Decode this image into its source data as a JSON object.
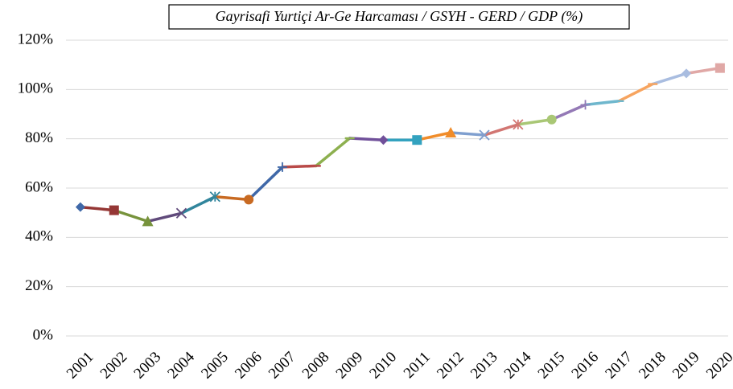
{
  "chart_data": {
    "type": "line",
    "title": "Gayrisafi Yurtiçi Ar-Ge Harcaması / GSYH - GERD / GDP (%)",
    "categories": [
      "2001",
      "2002",
      "2003",
      "2004",
      "2005",
      "2006",
      "2007",
      "2008",
      "2009",
      "2010",
      "2011",
      "2012",
      "2013",
      "2014",
      "2015",
      "2016",
      "2017",
      "2018",
      "2019",
      "2020"
    ],
    "series": [
      {
        "name": "GERD / GDP",
        "values": [
          52.3,
          51,
          46.5,
          49.8,
          56.5,
          55.3,
          68.5,
          69,
          80.2,
          79.5,
          79.5,
          82.5,
          81.5,
          85.8,
          87.8,
          93.8,
          95.3,
          102.2,
          106.5,
          108.7
        ],
        "colors": [
          "#3f68a8",
          "#953735",
          "#77933c",
          "#604a7b",
          "#31859c",
          "#c86a22",
          "#3f68a8",
          "#b94a48",
          "#8db04f",
          "#70509a",
          "#33a2bf",
          "#f08c2a",
          "#7f9fcf",
          "#d27672",
          "#a9c775",
          "#9479b6",
          "#6fb7cd",
          "#f7a45f",
          "#a9bde0",
          "#e0a8a6"
        ],
        "markers": [
          "diamond",
          "square",
          "triangle",
          "x",
          "star",
          "circle",
          "plus",
          "dash",
          "dash",
          "diamond",
          "square",
          "triangle",
          "x",
          "star",
          "circle",
          "plus",
          "dash",
          "dash",
          "diamond",
          "square"
        ]
      }
    ],
    "ylim": [
      0,
      120
    ],
    "yticks": [
      {
        "value": 0,
        "label": "0%"
      },
      {
        "value": 20,
        "label": "20%"
      },
      {
        "value": 40,
        "label": "40%"
      },
      {
        "value": 60,
        "label": "60%"
      },
      {
        "value": 80,
        "label": "80%"
      },
      {
        "value": 100,
        "label": "100%"
      },
      {
        "value": 120,
        "label": "120%"
      }
    ],
    "grid": true
  }
}
